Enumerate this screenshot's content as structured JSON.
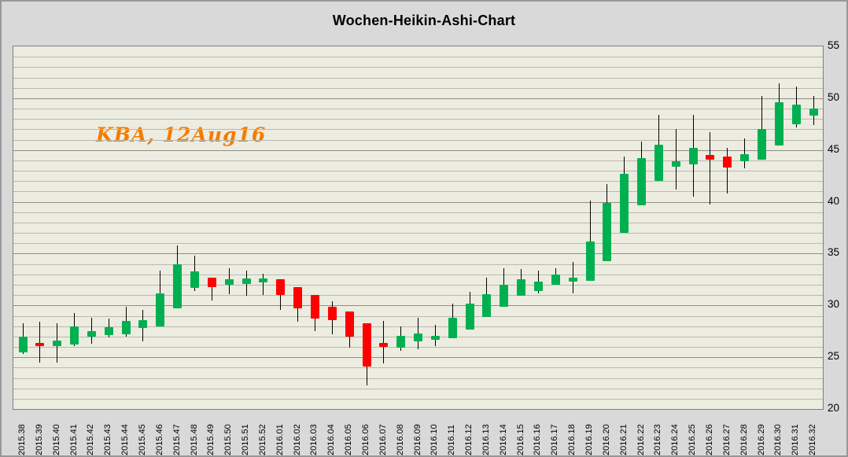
{
  "title": "Wochen-Heikin-Ashi-Chart",
  "annotation": {
    "text": "KBA, 12Aug16",
    "color": "#f47b00"
  },
  "colors": {
    "up": "#00b050",
    "down": "#fe0000",
    "wick": "#000000",
    "plot_bg": "#edece0",
    "outer_bg": "#d9d9d9",
    "grid_minor": "#b9b9af",
    "grid_major": "#8e8e86",
    "plot_border": "#7f7f7f",
    "title_color": "#000000"
  },
  "axis": {
    "y_min": 20,
    "y_max": 55,
    "grid_step": 1,
    "major_step": 5,
    "y_ticks": [
      "20",
      "25",
      "30",
      "35",
      "40",
      "45",
      "50",
      "55"
    ]
  },
  "chart_data": {
    "type": "candlestick",
    "subtype": "heikin-ashi-weekly",
    "title": "Wochen-Heikin-Ashi-Chart",
    "annotation": "KBA, 12Aug16",
    "xlabel": "",
    "ylabel": "",
    "ylim": [
      20,
      55
    ],
    "grid": true,
    "legend": "none",
    "ohlc_columns": [
      "open",
      "high",
      "low",
      "close"
    ],
    "categories": [
      "2015.38",
      "2015.39",
      "2015.40",
      "2015.41",
      "2015.42",
      "2015.43",
      "2015.44",
      "2015.45",
      "2015.46",
      "2015.47",
      "2015.48",
      "2015.49",
      "2015.50",
      "2015.51",
      "2015.52",
      "2016.01",
      "2016.02",
      "2016.03",
      "2016.04",
      "2016.05",
      "2016.06",
      "2016.07",
      "2016.08",
      "2016.09",
      "2016.10",
      "2016.11",
      "2016.12",
      "2016.13",
      "2016.14",
      "2016.15",
      "2016.16",
      "2016.17",
      "2016.18",
      "2016.19",
      "2016.20",
      "2016.21",
      "2016.22",
      "2016.23",
      "2016.24",
      "2016.25",
      "2016.26",
      "2016.27",
      "2016.28",
      "2016.29",
      "2016.30",
      "2016.31",
      "2016.32"
    ],
    "ohlc": [
      [
        25.5,
        28.3,
        25.3,
        27.0
      ],
      [
        26.4,
        28.4,
        24.5,
        26.1
      ],
      [
        26.1,
        28.3,
        24.5,
        26.6
      ],
      [
        26.2,
        29.3,
        26.1,
        28.0
      ],
      [
        27.0,
        28.8,
        26.3,
        27.5
      ],
      [
        27.1,
        28.7,
        26.9,
        27.9
      ],
      [
        27.2,
        29.9,
        27.0,
        28.5
      ],
      [
        27.8,
        29.6,
        26.5,
        28.6
      ],
      [
        28.0,
        33.4,
        28.0,
        31.2
      ],
      [
        29.7,
        35.8,
        29.7,
        34.0
      ],
      [
        31.7,
        34.8,
        31.4,
        33.3
      ],
      [
        32.7,
        32.7,
        30.5,
        31.8
      ],
      [
        32.0,
        33.6,
        31.1,
        32.5
      ],
      [
        32.1,
        33.4,
        30.9,
        32.6
      ],
      [
        32.2,
        33.1,
        31.0,
        32.6
      ],
      [
        32.5,
        32.5,
        29.6,
        31.0
      ],
      [
        31.8,
        31.8,
        28.4,
        29.7
      ],
      [
        31.0,
        31.0,
        27.5,
        28.7
      ],
      [
        29.9,
        30.4,
        27.2,
        28.6
      ],
      [
        29.4,
        29.4,
        25.9,
        27.0
      ],
      [
        28.3,
        28.3,
        22.3,
        24.1
      ],
      [
        26.4,
        28.5,
        24.4,
        26.0
      ],
      [
        25.9,
        28.0,
        25.6,
        27.1
      ],
      [
        26.5,
        28.8,
        25.8,
        27.3
      ],
      [
        26.7,
        28.1,
        26.1,
        27.1
      ],
      [
        26.8,
        30.2,
        26.8,
        28.8
      ],
      [
        27.7,
        31.3,
        27.7,
        30.2
      ],
      [
        28.9,
        32.7,
        28.9,
        31.1
      ],
      [
        29.9,
        33.6,
        29.9,
        32.0
      ],
      [
        30.9,
        33.5,
        30.9,
        32.5
      ],
      [
        31.4,
        33.4,
        31.2,
        32.3
      ],
      [
        32.0,
        33.6,
        32.0,
        33.0
      ],
      [
        32.3,
        34.2,
        31.2,
        32.7
      ],
      [
        32.4,
        40.1,
        32.4,
        36.2
      ],
      [
        34.3,
        41.7,
        34.3,
        39.9
      ],
      [
        37.0,
        44.4,
        37.0,
        42.7
      ],
      [
        39.7,
        45.8,
        39.7,
        44.2
      ],
      [
        42.0,
        48.4,
        42.0,
        45.5
      ],
      [
        43.4,
        47.0,
        41.2,
        43.9
      ],
      [
        43.6,
        48.4,
        40.5,
        45.2
      ],
      [
        44.5,
        46.7,
        39.7,
        44.1
      ],
      [
        44.4,
        45.2,
        40.8,
        43.3
      ],
      [
        43.9,
        46.1,
        43.2,
        44.6
      ],
      [
        44.1,
        50.2,
        44.1,
        47.0
      ],
      [
        45.4,
        51.4,
        45.4,
        49.6
      ],
      [
        47.5,
        51.1,
        47.2,
        49.4
      ],
      [
        48.3,
        50.2,
        47.4,
        49.0
      ]
    ]
  }
}
